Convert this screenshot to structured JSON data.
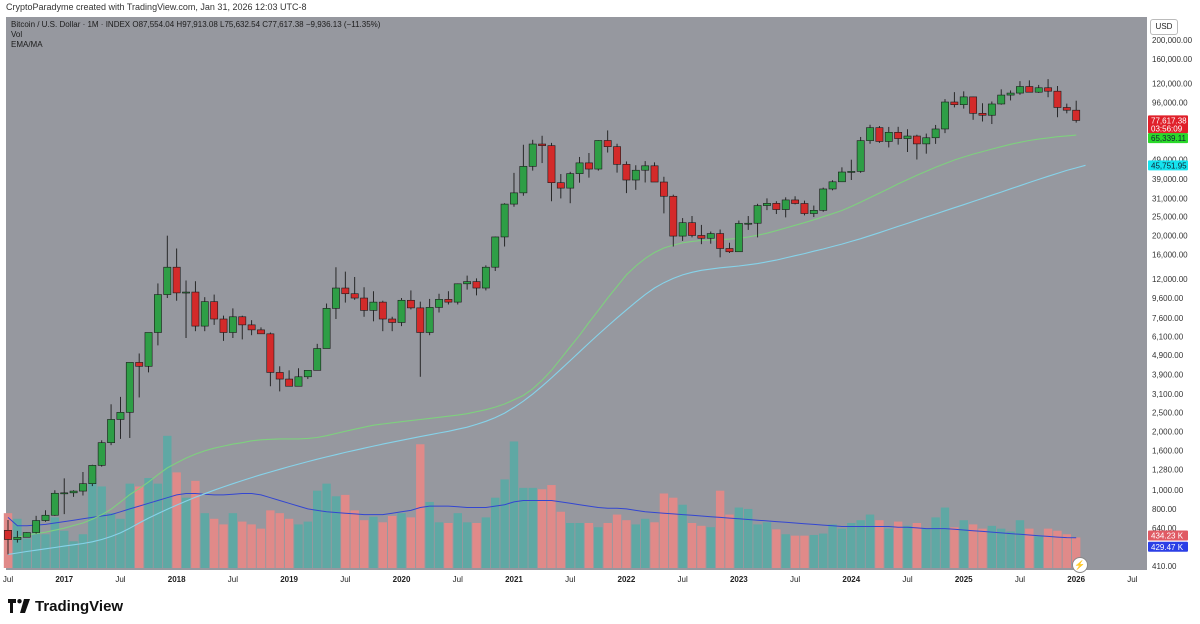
{
  "header": {
    "credit": "CryptoParadyme created with TradingView.com, Jan 31, 2026 12:03 UTC-8"
  },
  "legend": {
    "title": "Bitcoin / U.S. Dollar · 1M · INDEX",
    "ohlc": "O87,554.04 H97,913.08 L75,632.54 C77,617.38 −9,936.13 (−11.35%)",
    "vol": "Vol",
    "ema": "EMA/MA"
  },
  "axis": {
    "currency": "USD",
    "price_ticks": [
      "200,000.00",
      "160,000.00",
      "120,000.00",
      "96,000.00",
      "49,000.00",
      "39,000.00",
      "31,000.00",
      "25,000.00",
      "20,000.00",
      "16,000.00",
      "12,000.00",
      "9,600.00",
      "7,600.00",
      "6,100.00",
      "4,900.00",
      "3,900.00",
      "3,100.00",
      "2,500.00",
      "2,000.00",
      "1,600.00",
      "1,280.00",
      "1,000.00",
      "800.00",
      "640.00",
      "410.00"
    ],
    "time_ticks": [
      "Jul",
      "2017",
      "Jul",
      "2018",
      "Jul",
      "2019",
      "Jul",
      "2020",
      "Jul",
      "2021",
      "Jul",
      "2022",
      "Jul",
      "2023",
      "Jul",
      "2024",
      "Jul",
      "2025",
      "Jul",
      "2026",
      "Jul"
    ]
  },
  "badges": {
    "price": "77,617.38",
    "countdown": "03:56:09",
    "ema": "65,339.11",
    "ma": "45,751.95",
    "vol_current": "434.23 K",
    "vol_ma": "429.47 K"
  },
  "brand": {
    "name": "TradingView"
  },
  "colors": {
    "up": "#2e9e46",
    "down": "#d42a2a",
    "vol_up": "#5fa8a4",
    "vol_down": "#e08a89",
    "ema": "#7ed07e",
    "ma": "#86d3ea",
    "vol_ma": "#3346d1",
    "bg": "#96989f"
  },
  "chart_data": {
    "type": "candlestick",
    "title": "Bitcoin / U.S. Dollar · 1M · INDEX",
    "scale": "log",
    "ylim": [
      410,
      200000
    ],
    "x_start": "2016-07",
    "interval": "1M",
    "ohlc": [
      [
        624,
        705,
        470,
        560
      ],
      [
        560,
        620,
        540,
        575
      ],
      [
        575,
        610,
        585,
        608
      ],
      [
        608,
        740,
        600,
        700
      ],
      [
        700,
        790,
        690,
        745
      ],
      [
        745,
        1000,
        740,
        965
      ],
      [
        965,
        1150,
        755,
        970
      ],
      [
        970,
        1000,
        925,
        990
      ],
      [
        990,
        1240,
        940,
        1080
      ],
      [
        1080,
        1350,
        1050,
        1340
      ],
      [
        1340,
        1800,
        1320,
        1750
      ],
      [
        1750,
        2750,
        1700,
        2300
      ],
      [
        2300,
        3000,
        1830,
        2500
      ],
      [
        2500,
        4500,
        1850,
        4500
      ],
      [
        4500,
        5000,
        2980,
        4300
      ],
      [
        4300,
        6400,
        4000,
        6400
      ],
      [
        6400,
        11400,
        5500,
        10000
      ],
      [
        10000,
        20000,
        9600,
        13800
      ],
      [
        13800,
        17200,
        9300,
        10200
      ],
      [
        10200,
        11800,
        6000,
        10300
      ],
      [
        10300,
        11700,
        6500,
        6900
      ],
      [
        6900,
        9700,
        6500,
        9200
      ],
      [
        9200,
        10000,
        7000,
        7500
      ],
      [
        7500,
        7800,
        5800,
        6400
      ],
      [
        6400,
        8500,
        6000,
        7700
      ],
      [
        7700,
        7800,
        5900,
        7000
      ],
      [
        7000,
        7400,
        6200,
        6600
      ],
      [
        6600,
        6800,
        6300,
        6300
      ],
      [
        6300,
        6400,
        3400,
        4000
      ],
      [
        4000,
        4300,
        3200,
        3700
      ],
      [
        3700,
        4100,
        3400,
        3400
      ],
      [
        3400,
        4200,
        3400,
        3800
      ],
      [
        3800,
        4100,
        3700,
        4100
      ],
      [
        4100,
        5600,
        4100,
        5300
      ],
      [
        5300,
        9000,
        5300,
        8500
      ],
      [
        8500,
        13800,
        7500,
        10800
      ],
      [
        10800,
        13100,
        9100,
        10100
      ],
      [
        10100,
        12300,
        9400,
        9600
      ],
      [
        9600,
        10900,
        7700,
        8300
      ],
      [
        8300,
        10400,
        7300,
        9150
      ],
      [
        9150,
        9300,
        6500,
        7500
      ],
      [
        7500,
        7700,
        6500,
        7200
      ],
      [
        7200,
        9600,
        6900,
        9350
      ],
      [
        9350,
        10500,
        8400,
        8550
      ],
      [
        8550,
        9200,
        3800,
        6400
      ],
      [
        6400,
        9500,
        6200,
        8600
      ],
      [
        8600,
        10100,
        8100,
        9450
      ],
      [
        9450,
        10400,
        8900,
        9150
      ],
      [
        9150,
        11400,
        8900,
        11350
      ],
      [
        11350,
        12500,
        10600,
        11650
      ],
      [
        11650,
        12100,
        9900,
        10800
      ],
      [
        10800,
        14100,
        10500,
        13800
      ],
      [
        13800,
        19800,
        13200,
        19700
      ],
      [
        19700,
        29300,
        17600,
        29000
      ],
      [
        29000,
        41900,
        28100,
        33100
      ],
      [
        33100,
        58300,
        32000,
        45200
      ],
      [
        45200,
        61800,
        43000,
        58800
      ],
      [
        58800,
        64800,
        47000,
        57700
      ],
      [
        57700,
        59600,
        30000,
        37300
      ],
      [
        37300,
        41300,
        31000,
        35000
      ],
      [
        35000,
        42400,
        29300,
        41500
      ],
      [
        41500,
        50500,
        37300,
        47100
      ],
      [
        47100,
        52900,
        39600,
        43800
      ],
      [
        43800,
        61500,
        43000,
        61300
      ],
      [
        61300,
        69000,
        53200,
        57000
      ],
      [
        57000,
        59000,
        42000,
        46300
      ],
      [
        46300,
        47900,
        33000,
        38500
      ],
      [
        38500,
        45800,
        34300,
        43200
      ],
      [
        43200,
        48100,
        37400,
        45500
      ],
      [
        45500,
        47400,
        37700,
        37600
      ],
      [
        37600,
        40000,
        26000,
        31800
      ],
      [
        31800,
        32400,
        17600,
        19900
      ],
      [
        19900,
        24600,
        18800,
        23300
      ],
      [
        23300,
        25200,
        19600,
        20050
      ],
      [
        20050,
        22700,
        18100,
        19400
      ],
      [
        19400,
        21000,
        18200,
        20500
      ],
      [
        20500,
        21500,
        15500,
        17200
      ],
      [
        17200,
        18400,
        16300,
        16550
      ],
      [
        16550,
        23900,
        16500,
        23100
      ],
      [
        23100,
        25200,
        21400,
        23150
      ],
      [
        23150,
        29100,
        19600,
        28500
      ],
      [
        28500,
        31000,
        27000,
        29250
      ],
      [
        29250,
        30000,
        25800,
        27200
      ],
      [
        27200,
        31400,
        24800,
        30450
      ],
      [
        30450,
        31800,
        28900,
        29200
      ],
      [
        29200,
        30200,
        25400,
        25950
      ],
      [
        25950,
        28500,
        24900,
        26950
      ],
      [
        26950,
        35200,
        26500,
        34650
      ],
      [
        34650,
        38400,
        34100,
        37700
      ],
      [
        37700,
        44700,
        37600,
        42300
      ],
      [
        42300,
        48900,
        38500,
        42600
      ],
      [
        42600,
        63900,
        41900,
        61200
      ],
      [
        61200,
        73800,
        59000,
        71300
      ],
      [
        71300,
        72700,
        59600,
        60600
      ],
      [
        60600,
        71900,
        56500,
        67500
      ],
      [
        67500,
        72000,
        58400,
        62700
      ],
      [
        62700,
        70000,
        53500,
        64600
      ],
      [
        64600,
        65600,
        49000,
        58900
      ],
      [
        58900,
        66500,
        52500,
        63300
      ],
      [
        63300,
        73600,
        58900,
        70200
      ],
      [
        70200,
        99800,
        66800,
        96400
      ],
      [
        96400,
        108300,
        90500,
        93400
      ],
      [
        93400,
        109300,
        89200,
        102400
      ],
      [
        102400,
        102800,
        78200,
        84400
      ],
      [
        84400,
        95000,
        76600,
        82500
      ],
      [
        82500,
        97000,
        74400,
        94200
      ],
      [
        94200,
        111900,
        93400,
        104600
      ],
      [
        104600,
        110500,
        98200,
        107100
      ],
      [
        107100,
        123200,
        105000,
        115700
      ],
      [
        115700,
        124400,
        108800,
        108200
      ],
      [
        108200,
        117900,
        107300,
        114000
      ],
      [
        114000,
        126200,
        102000,
        109500
      ],
      [
        109500,
        116400,
        80600,
        90400
      ],
      [
        90400,
        94600,
        84400,
        87554
      ],
      [
        87554,
        97913,
        75632,
        77617
      ]
    ],
    "volume_k": [
      780,
      700,
      420,
      680,
      480,
      720,
      530,
      380,
      480,
      1280,
      1160,
      780,
      700,
      1200,
      1160,
      1280,
      1200,
      1880,
      1360,
      1000,
      1240,
      780,
      700,
      620,
      780,
      660,
      620,
      560,
      820,
      780,
      700,
      620,
      660,
      1100,
      1200,
      1020,
      1040,
      820,
      680,
      730,
      650,
      740,
      780,
      720,
      1760,
      940,
      650,
      640,
      780,
      650,
      640,
      720,
      1000,
      1260,
      1800,
      1140,
      1140,
      1120,
      1180,
      800,
      640,
      640,
      640,
      580,
      640,
      760,
      680,
      620,
      700,
      650,
      1060,
      1000,
      900,
      640,
      600,
      580,
      1100,
      760,
      860,
      840,
      620,
      650,
      550,
      480,
      460,
      460,
      470,
      490,
      620,
      560,
      640,
      680,
      760,
      680,
      560,
      660,
      600,
      640,
      560,
      720,
      860,
      580,
      680,
      620,
      560,
      600,
      560,
      520,
      680,
      560,
      450,
      560,
      530,
      480,
      434.23
    ],
    "ema": [
      560,
      575,
      590,
      600,
      610,
      625,
      640,
      660,
      680,
      710,
      750,
      800,
      870,
      950,
      1020,
      1100,
      1200,
      1300,
      1380,
      1460,
      1530,
      1590,
      1640,
      1680,
      1720,
      1750,
      1790,
      1810,
      1820,
      1830,
      1830,
      1830,
      1840,
      1860,
      1900,
      1950,
      2000,
      2050,
      2100,
      2150,
      2180,
      2210,
      2240,
      2270,
      2300,
      2330,
      2360,
      2390,
      2420,
      2460,
      2520,
      2580,
      2660,
      2760,
      2900,
      3050,
      3300,
      3650,
      4100,
      4700,
      5400,
      6200,
      7200,
      8300,
      9600,
      11000,
      12600,
      14000,
      15300,
      16400,
      17300,
      17900,
      18400,
      18700,
      18900,
      19000,
      19100,
      19200,
      19400,
      19700,
      20100,
      20600,
      21200,
      21900,
      22600,
      23300,
      24100,
      25000,
      25900,
      26900,
      28200,
      29700,
      31300,
      33000,
      34800,
      36800,
      38700,
      40700,
      42700,
      44700,
      46700,
      48700,
      50500,
      52200,
      53800,
      55400,
      57000,
      58600,
      60000,
      61300,
      62300,
      63200,
      64100,
      64700,
      65339
    ],
    "ma": [
      470,
      478,
      486,
      494,
      502,
      510,
      518,
      526,
      534,
      545,
      560,
      580,
      605,
      640,
      680,
      720,
      760,
      800,
      840,
      880,
      920,
      960,
      1000,
      1040,
      1080,
      1120,
      1160,
      1200,
      1240,
      1280,
      1320,
      1360,
      1400,
      1440,
      1480,
      1520,
      1560,
      1600,
      1640,
      1680,
      1720,
      1760,
      1800,
      1840,
      1880,
      1920,
      1960,
      2000,
      2050,
      2100,
      2170,
      2250,
      2350,
      2480,
      2650,
      2850,
      3100,
      3400,
      3750,
      4150,
      4600,
      5100,
      5650,
      6250,
      6900,
      7600,
      8350,
      9150,
      10000,
      10800,
      11500,
      12100,
      12600,
      13000,
      13300,
      13500,
      13700,
      13850,
      14000,
      14200,
      14400,
      14700,
      15000,
      15400,
      15800,
      16200,
      16650,
      17100,
      17600,
      18100,
      18700,
      19300,
      20000,
      20700,
      21500,
      22300,
      23100,
      24000,
      24900,
      25800,
      26800,
      27800,
      28800,
      29900,
      31000,
      32200,
      33400,
      34700,
      36000,
      37400,
      38800,
      40200,
      41600,
      43100,
      44400,
      45751.95
    ],
    "vol_ma_k": [
      720,
      600,
      600,
      610,
      620,
      640,
      660,
      680,
      700,
      720,
      740,
      760,
      800,
      840,
      880,
      920,
      960,
      1000,
      1040,
      1060,
      1060,
      1050,
      1040,
      1040,
      1050,
      1060,
      1060,
      1040,
      1000,
      960,
      920,
      880,
      840,
      820,
      800,
      790,
      780,
      770,
      760,
      760,
      760,
      780,
      800,
      820,
      860,
      880,
      880,
      880,
      870,
      860,
      860,
      860,
      880,
      900,
      940,
      960,
      960,
      960,
      960,
      940,
      920,
      900,
      880,
      860,
      850,
      850,
      840,
      820,
      800,
      790,
      780,
      770,
      760,
      750,
      740,
      730,
      720,
      710,
      700,
      690,
      680,
      670,
      660,
      650,
      640,
      630,
      620,
      610,
      600,
      590,
      590,
      590,
      590,
      590,
      590,
      580,
      580,
      570,
      560,
      560,
      560,
      550,
      540,
      530,
      520,
      510,
      500,
      490,
      480,
      470,
      460,
      450,
      440,
      432,
      429.47
    ]
  }
}
